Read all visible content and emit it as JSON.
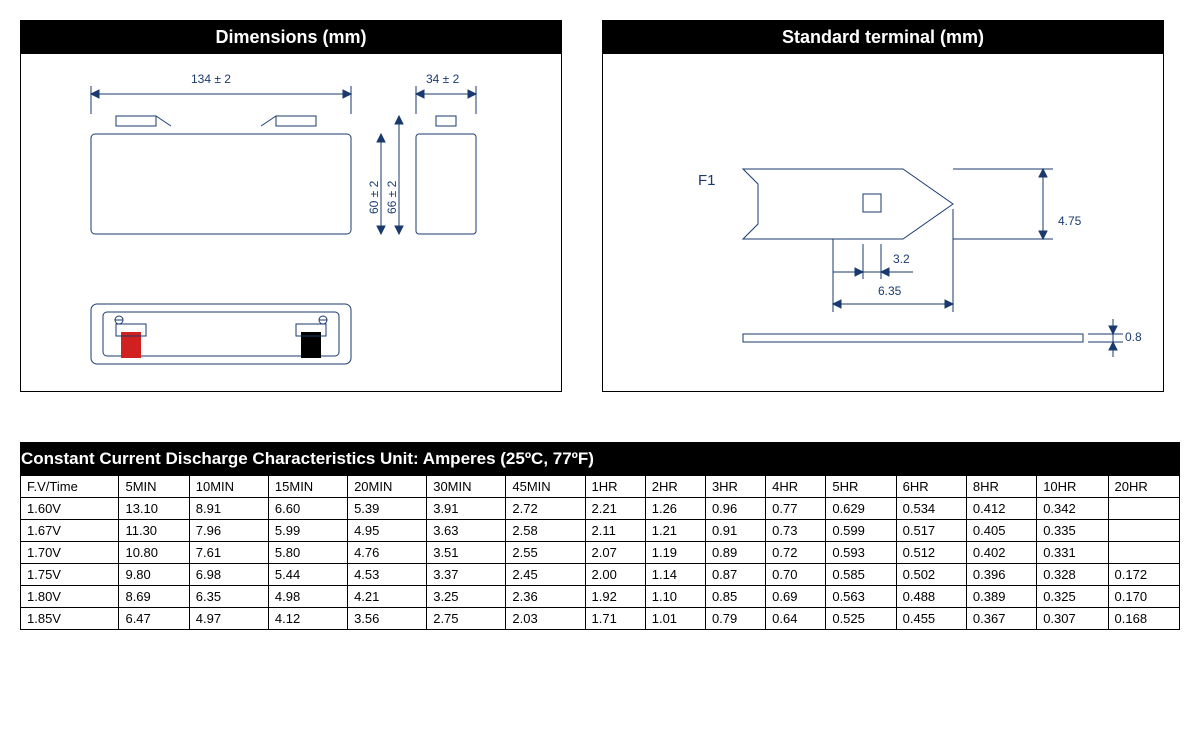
{
  "panels": {
    "dimensions": {
      "title": "Dimensions (mm)",
      "width_label": "134 ± 2",
      "depth_label": "34 ± 2",
      "height1_label": "60 ± 2",
      "height2_label": "66 ± 2"
    },
    "terminal": {
      "title": "Standard terminal (mm)",
      "type_label": "F1",
      "dim_475": "4.75",
      "dim_32": "3.2",
      "dim_635": "6.35",
      "dim_08": "0.8"
    }
  },
  "table": {
    "title": "Constant Current Discharge Characteristics Unit: Amperes (25ºC, 77ºF)",
    "columns": [
      "F.V/Time",
      "5MIN",
      "10MIN",
      "15MIN",
      "20MIN",
      "30MIN",
      "45MIN",
      "1HR",
      "2HR",
      "3HR",
      "4HR",
      "5HR",
      "6HR",
      "8HR",
      "10HR",
      "20HR"
    ],
    "rows": [
      [
        "1.60V",
        "13.10",
        "8.91",
        "6.60",
        "5.39",
        "3.91",
        "2.72",
        "2.21",
        "1.26",
        "0.96",
        "0.77",
        "0.629",
        "0.534",
        "0.412",
        "0.342",
        ""
      ],
      [
        "1.67V",
        "11.30",
        "7.96",
        "5.99",
        "4.95",
        "3.63",
        "2.58",
        "2.11",
        "1.21",
        "0.91",
        "0.73",
        "0.599",
        "0.517",
        "0.405",
        "0.335",
        ""
      ],
      [
        "1.70V",
        "10.80",
        "7.61",
        "5.80",
        "4.76",
        "3.51",
        "2.55",
        "2.07",
        "1.19",
        "0.89",
        "0.72",
        "0.593",
        "0.512",
        "0.402",
        "0.331",
        ""
      ],
      [
        "1.75V",
        "9.80",
        "6.98",
        "5.44",
        "4.53",
        "3.37",
        "2.45",
        "2.00",
        "1.14",
        "0.87",
        "0.70",
        "0.585",
        "0.502",
        "0.396",
        "0.328",
        "0.172"
      ],
      [
        "1.80V",
        "8.69",
        "6.35",
        "4.98",
        "4.21",
        "3.25",
        "2.36",
        "1.92",
        "1.10",
        "0.85",
        "0.69",
        "0.563",
        "0.488",
        "0.389",
        "0.325",
        "0.170"
      ],
      [
        "1.85V",
        "6.47",
        "4.97",
        "4.12",
        "3.56",
        "2.75",
        "2.03",
        "1.71",
        "1.01",
        "0.79",
        "0.64",
        "0.525",
        "0.455",
        "0.367",
        "0.307",
        "0.168"
      ]
    ]
  },
  "colors": {
    "header_bg": "#000000",
    "header_fg": "#ffffff",
    "line": "#1a3a6e",
    "positive": "#d02020",
    "negative": "#000000",
    "neutral_fill": "#dddddd"
  }
}
